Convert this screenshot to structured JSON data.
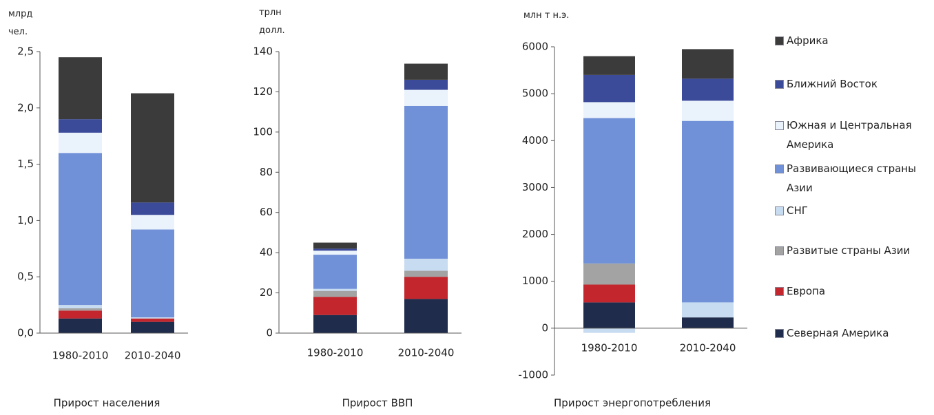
{
  "legend": [
    {
      "name": "Северная Америка",
      "color": "#1f2c4c"
    },
    {
      "name": "Европа",
      "color": "#c3262c"
    },
    {
      "name": "Развитые страны Азии",
      "color": "#a3a3a3"
    },
    {
      "name": "СНГ",
      "color": "#c7dbf1"
    },
    {
      "name": "Развивающиеся страны Азии",
      "color": "#7090d8"
    },
    {
      "name": "Южная и Центральная Америка",
      "color": "#eaf2fb"
    },
    {
      "name": "Ближний Восток",
      "color": "#3b4a99"
    },
    {
      "name": "Африка",
      "color": "#3b3b3b"
    }
  ],
  "chart_data": [
    {
      "type": "bar",
      "stacked": true,
      "title": "Прирост населения",
      "y_label": "млрд чел.",
      "categories": [
        "1980-2010",
        "2010-2040"
      ],
      "series": [
        {
          "values": [
            0.13,
            0.1
          ]
        },
        {
          "values": [
            0.07,
            0.03
          ]
        },
        {
          "values": [
            0.02,
            0
          ]
        },
        {
          "values": [
            0.03,
            0.01
          ]
        },
        {
          "values": [
            1.35,
            0.78
          ]
        },
        {
          "values": [
            0.18,
            0.13
          ]
        },
        {
          "values": [
            0.12,
            0.11
          ]
        },
        {
          "values": [
            0.55,
            0.97
          ]
        }
      ],
      "ylim": [
        0,
        2.5
      ],
      "yticks": [
        {
          "value": 0,
          "label": "0,0"
        },
        {
          "value": 0.5,
          "label": "0,5"
        },
        {
          "value": 1,
          "label": "1,0"
        },
        {
          "value": 1.5,
          "label": "1,5"
        },
        {
          "value": 2,
          "label": "2,0"
        },
        {
          "value": 2.5,
          "label": "2,5"
        }
      ]
    },
    {
      "type": "bar",
      "stacked": true,
      "title": "Прирост ВВП",
      "y_label": "трлн долл.",
      "categories": [
        "1980-2010",
        "2010-2040"
      ],
      "series": [
        {
          "values": [
            9,
            17
          ]
        },
        {
          "values": [
            9,
            11
          ]
        },
        {
          "values": [
            3,
            3
          ]
        },
        {
          "values": [
            1,
            6
          ]
        },
        {
          "values": [
            17,
            76
          ]
        },
        {
          "values": [
            2,
            8
          ]
        },
        {
          "values": [
            1,
            5
          ]
        },
        {
          "values": [
            3,
            8
          ]
        }
      ],
      "ylim": [
        0,
        140
      ],
      "yticks": [
        0,
        20,
        40,
        60,
        80,
        100,
        120,
        140
      ]
    },
    {
      "type": "bar",
      "stacked": true,
      "title": "Прирост энергопотребления",
      "y_label": "млн т н.э.",
      "categories": [
        "1980-2010",
        "2010-2040"
      ],
      "series": [
        {
          "values": [
            550,
            230
          ]
        },
        {
          "values": [
            380,
            0
          ]
        },
        {
          "values": [
            450,
            0
          ]
        },
        {
          "values": [
            -100,
            320
          ]
        },
        {
          "values": [
            3100,
            3870
          ]
        },
        {
          "values": [
            340,
            430
          ]
        },
        {
          "values": [
            580,
            470
          ]
        },
        {
          "values": [
            400,
            630
          ]
        }
      ],
      "ylim": [
        -1000,
        6000
      ],
      "yticks": [
        -1000,
        0,
        1000,
        2000,
        3000,
        4000,
        5000,
        6000
      ]
    }
  ]
}
